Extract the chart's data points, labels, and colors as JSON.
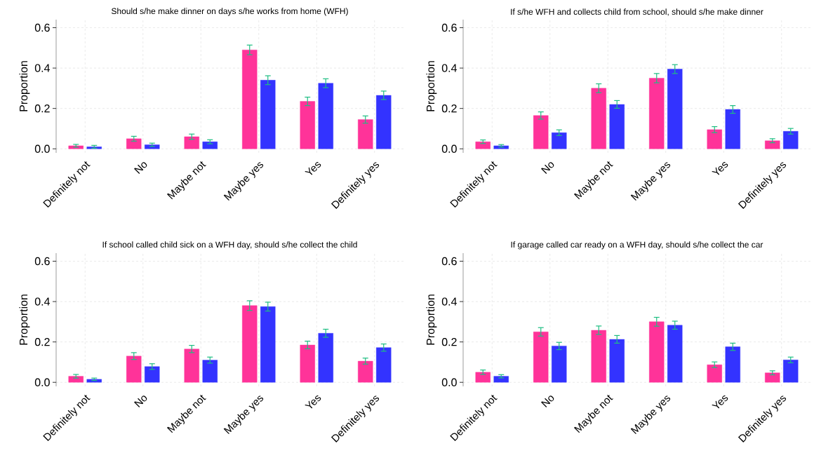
{
  "chart_data": [
    {
      "type": "bar",
      "title": "Should s/he make dinner on days s/he works from home (WFH)",
      "ylabel": "Proportion",
      "categories": [
        "Definitely not",
        "No",
        "Maybe not",
        "Maybe yes",
        "Yes",
        "Definitely yes"
      ],
      "grid": true,
      "ylim": [
        -0.02,
        0.64
      ],
      "yticks": [
        {
          "value": 0,
          "label": "0.0"
        },
        {
          "value": 0.2,
          "label": "0.2"
        },
        {
          "value": 0.4,
          "label": "0.4"
        },
        {
          "value": 0.6,
          "label": "0.6"
        }
      ],
      "series": [
        {
          "color": "#ff3399",
          "values": [
            0.015,
            0.05,
            0.06,
            0.49,
            0.235,
            0.145
          ],
          "errors": [
            0.007,
            0.012,
            0.013,
            0.024,
            0.021,
            0.018
          ]
        },
        {
          "color": "#3333ff",
          "values": [
            0.01,
            0.02,
            0.035,
            0.34,
            0.325,
            0.265
          ],
          "errors": [
            0.007,
            0.008,
            0.01,
            0.022,
            0.022,
            0.021
          ]
        }
      ]
    },
    {
      "type": "bar",
      "title": "If s/he WFH and collects child from school, should s/he make dinner",
      "ylabel": "Proportion",
      "categories": [
        "Definitely not",
        "No",
        "Maybe not",
        "Maybe yes",
        "Yes",
        "Definitely yes"
      ],
      "grid": true,
      "ylim": [
        -0.02,
        0.64
      ],
      "yticks": [
        {
          "value": 0,
          "label": "0.0"
        },
        {
          "value": 0.2,
          "label": "0.2"
        },
        {
          "value": 0.4,
          "label": "0.4"
        },
        {
          "value": 0.6,
          "label": "0.6"
        }
      ],
      "series": [
        {
          "color": "#ff3399",
          "values": [
            0.035,
            0.165,
            0.3,
            0.35,
            0.095,
            0.04
          ],
          "errors": [
            0.009,
            0.018,
            0.022,
            0.023,
            0.015,
            0.01
          ]
        },
        {
          "color": "#3333ff",
          "values": [
            0.015,
            0.08,
            0.22,
            0.395,
            0.195,
            0.087
          ],
          "errors": [
            0.006,
            0.014,
            0.019,
            0.022,
            0.019,
            0.014
          ]
        }
      ]
    },
    {
      "type": "bar",
      "title": "If school called child sick on a WFH day, should s/he collect the child",
      "ylabel": "Proportion",
      "categories": [
        "Definitely not",
        "No",
        "Maybe not",
        "Maybe yes",
        "Yes",
        "Definitely yes"
      ],
      "grid": true,
      "ylim": [
        -0.02,
        0.64
      ],
      "yticks": [
        {
          "value": 0,
          "label": "0.0"
        },
        {
          "value": 0.2,
          "label": "0.2"
        },
        {
          "value": 0.4,
          "label": "0.4"
        },
        {
          "value": 0.6,
          "label": "0.6"
        }
      ],
      "series": [
        {
          "color": "#ff3399",
          "values": [
            0.03,
            0.13,
            0.165,
            0.38,
            0.185,
            0.105
          ],
          "errors": [
            0.009,
            0.017,
            0.018,
            0.024,
            0.019,
            0.015
          ]
        },
        {
          "color": "#3333ff",
          "values": [
            0.015,
            0.078,
            0.11,
            0.375,
            0.243,
            0.172
          ],
          "errors": [
            0.006,
            0.014,
            0.015,
            0.022,
            0.02,
            0.018
          ]
        }
      ]
    },
    {
      "type": "bar",
      "title": "If garage called car ready on a WFH day, should s/he collect the car",
      "ylabel": "Proportion",
      "categories": [
        "Definitely not",
        "No",
        "Maybe not",
        "Maybe yes",
        "Yes",
        "Definitely yes"
      ],
      "grid": true,
      "ylim": [
        -0.02,
        0.64
      ],
      "yticks": [
        {
          "value": 0,
          "label": "0.0"
        },
        {
          "value": 0.2,
          "label": "0.2"
        },
        {
          "value": 0.4,
          "label": "0.4"
        },
        {
          "value": 0.6,
          "label": "0.6"
        }
      ],
      "series": [
        {
          "color": "#ff3399",
          "values": [
            0.05,
            0.25,
            0.258,
            0.3,
            0.087,
            0.047
          ],
          "errors": [
            0.011,
            0.021,
            0.021,
            0.022,
            0.014,
            0.01
          ]
        },
        {
          "color": "#3333ff",
          "values": [
            0.03,
            0.18,
            0.213,
            0.283,
            0.176,
            0.111
          ],
          "errors": [
            0.008,
            0.018,
            0.019,
            0.02,
            0.018,
            0.014
          ]
        }
      ]
    }
  ]
}
